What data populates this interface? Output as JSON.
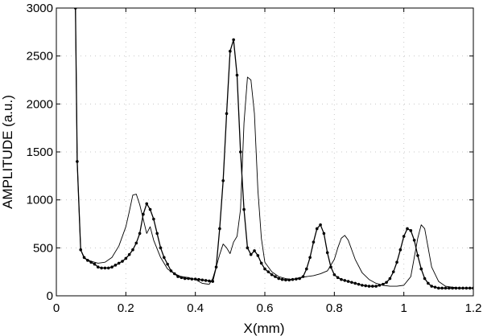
{
  "chart_data": {
    "type": "line",
    "title": "",
    "xlabel": "X(mm)",
    "ylabel": "AMPLITUDE (a.u.)",
    "xlim": [
      0,
      1.2
    ],
    "ylim": [
      0,
      3000
    ],
    "xticks": [
      0,
      0.2,
      0.4,
      0.6,
      0.8,
      1,
      1.2
    ],
    "xtick_labels": [
      "0",
      "0.2",
      "0.4",
      "0.6",
      "0.8",
      "1",
      "1.2"
    ],
    "yticks": [
      0,
      500,
      1000,
      1500,
      2000,
      2500,
      3000
    ],
    "ytick_labels": [
      "0",
      "500",
      "1000",
      "1500",
      "2000",
      "2500",
      "3000"
    ],
    "grid": "dotted at ticks",
    "legend": "none",
    "series": [
      {
        "marker": "dot",
        "color": "#000000",
        "x": [
          0.055,
          0.06,
          0.07,
          0.08,
          0.09,
          0.1,
          0.11,
          0.12,
          0.13,
          0.14,
          0.15,
          0.16,
          0.17,
          0.18,
          0.19,
          0.2,
          0.21,
          0.22,
          0.23,
          0.24,
          0.25,
          0.26,
          0.27,
          0.28,
          0.29,
          0.3,
          0.31,
          0.32,
          0.33,
          0.34,
          0.35,
          0.36,
          0.37,
          0.38,
          0.39,
          0.4,
          0.41,
          0.42,
          0.43,
          0.44,
          0.45,
          0.46,
          0.47,
          0.48,
          0.49,
          0.5,
          0.51,
          0.52,
          0.53,
          0.54,
          0.55,
          0.56,
          0.57,
          0.58,
          0.59,
          0.6,
          0.61,
          0.62,
          0.63,
          0.64,
          0.65,
          0.66,
          0.67,
          0.68,
          0.69,
          0.7,
          0.71,
          0.72,
          0.73,
          0.74,
          0.75,
          0.76,
          0.77,
          0.78,
          0.79,
          0.8,
          0.81,
          0.82,
          0.83,
          0.84,
          0.85,
          0.86,
          0.87,
          0.88,
          0.89,
          0.9,
          0.91,
          0.92,
          0.93,
          0.94,
          0.95,
          0.96,
          0.97,
          0.98,
          0.99,
          1.0,
          1.01,
          1.02,
          1.03,
          1.04,
          1.05,
          1.06,
          1.07,
          1.08,
          1.09,
          1.1,
          1.11,
          1.12,
          1.13,
          1.14,
          1.15,
          1.16,
          1.17,
          1.18,
          1.19,
          1.2
        ],
        "y": [
          3000,
          1400,
          480,
          400,
          370,
          350,
          330,
          300,
          290,
          290,
          290,
          300,
          320,
          340,
          360,
          390,
          430,
          480,
          550,
          650,
          850,
          960,
          900,
          800,
          650,
          500,
          400,
          330,
          260,
          230,
          200,
          190,
          180,
          180,
          175,
          175,
          170,
          165,
          160,
          155,
          150,
          300,
          700,
          1200,
          1900,
          2550,
          2670,
          2300,
          1500,
          900,
          500,
          430,
          470,
          420,
          340,
          280,
          250,
          220,
          200,
          180,
          170,
          165,
          165,
          170,
          175,
          180,
          200,
          280,
          400,
          560,
          700,
          740,
          650,
          450,
          300,
          220,
          190,
          170,
          160,
          150,
          140,
          130,
          120,
          110,
          105,
          100,
          100,
          100,
          110,
          120,
          140,
          180,
          250,
          350,
          480,
          620,
          700,
          680,
          580,
          420,
          280,
          180,
          130,
          100,
          90,
          80,
          80,
          80,
          80,
          80,
          80,
          80,
          80,
          80,
          80,
          80
        ]
      },
      {
        "marker": "none",
        "color": "#000000",
        "x": [
          0.055,
          0.06,
          0.07,
          0.08,
          0.1,
          0.12,
          0.14,
          0.16,
          0.18,
          0.2,
          0.21,
          0.22,
          0.23,
          0.24,
          0.25,
          0.26,
          0.27,
          0.28,
          0.3,
          0.32,
          0.34,
          0.36,
          0.38,
          0.4,
          0.42,
          0.44,
          0.45,
          0.46,
          0.47,
          0.48,
          0.49,
          0.5,
          0.51,
          0.52,
          0.53,
          0.54,
          0.55,
          0.56,
          0.57,
          0.58,
          0.59,
          0.6,
          0.62,
          0.64,
          0.66,
          0.68,
          0.7,
          0.72,
          0.74,
          0.76,
          0.78,
          0.8,
          0.81,
          0.82,
          0.83,
          0.84,
          0.85,
          0.86,
          0.88,
          0.9,
          0.92,
          0.94,
          0.96,
          0.98,
          1.0,
          1.02,
          1.03,
          1.04,
          1.05,
          1.06,
          1.07,
          1.08,
          1.1,
          1.12,
          1.14,
          1.16,
          1.18,
          1.2
        ],
        "y": [
          3000,
          1400,
          480,
          390,
          360,
          340,
          350,
          400,
          520,
          720,
          880,
          1050,
          1060,
          950,
          800,
          650,
          720,
          580,
          400,
          280,
          230,
          200,
          190,
          170,
          130,
          120,
          180,
          300,
          430,
          540,
          500,
          440,
          560,
          620,
          900,
          1800,
          2280,
          2250,
          1900,
          1100,
          600,
          350,
          250,
          200,
          180,
          170,
          190,
          200,
          210,
          230,
          260,
          380,
          500,
          600,
          630,
          580,
          480,
          380,
          240,
          170,
          130,
          110,
          100,
          100,
          110,
          200,
          400,
          600,
          740,
          700,
          500,
          300,
          150,
          100,
          90,
          80,
          80,
          80
        ]
      }
    ]
  }
}
